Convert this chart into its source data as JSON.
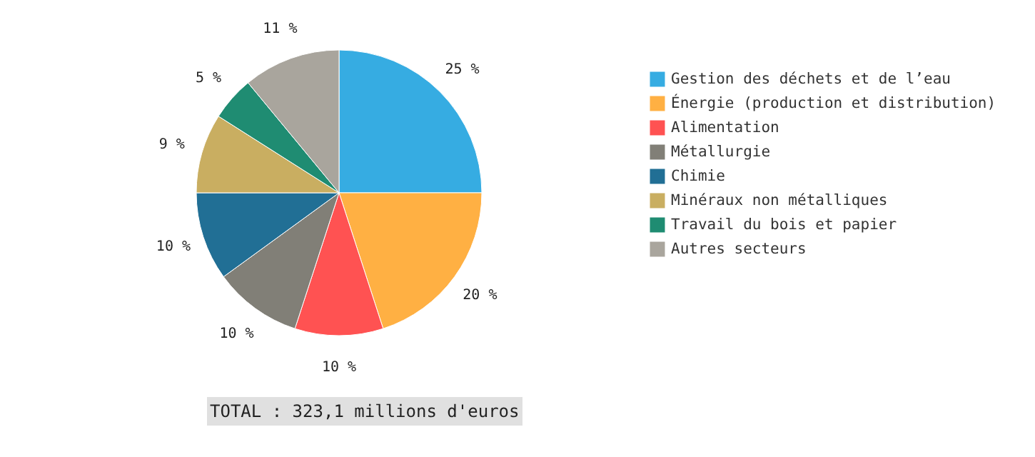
{
  "chart_data": {
    "type": "pie",
    "categories": [
      "Gestion des déchets et de l’eau",
      "Énergie (production et distribution)",
      "Alimentation",
      "Métallurgie",
      "Chimie",
      "Minéraux non métalliques",
      "Travail du bois et papier",
      "Autres secteurs"
    ],
    "values": [
      25,
      20,
      10,
      10,
      10,
      9,
      5,
      11
    ],
    "value_labels": [
      "25 %",
      "20 %",
      "10 %",
      "10 %",
      "10 %",
      "9 %",
      "5 %",
      "11 %"
    ],
    "colors": [
      "#36ace2",
      "#ffb043",
      "#ff5252",
      "#817f77",
      "#216f95",
      "#c9ae61",
      "#1f8c72",
      "#a9a59d"
    ],
    "legend": "right",
    "annotations": [
      "TOTAL : 323,1 millions d'euros"
    ]
  }
}
